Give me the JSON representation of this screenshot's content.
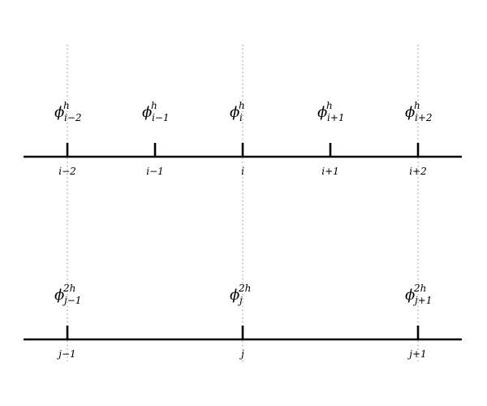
{
  "fine_grid": {
    "symbol": "ϕ",
    "superscript": "h",
    "nodes": [
      {
        "subscript": "i−2",
        "index_label": "i−2",
        "aligned": true
      },
      {
        "subscript": "i−1",
        "index_label": "i−1",
        "aligned": false
      },
      {
        "subscript": "i",
        "index_label": "i",
        "aligned": true
      },
      {
        "subscript": "i+1",
        "index_label": "i+1",
        "aligned": false
      },
      {
        "subscript": "i+2",
        "index_label": "i+2",
        "aligned": true
      }
    ]
  },
  "coarse_grid": {
    "symbol": "ϕ",
    "superscript": "2h",
    "nodes": [
      {
        "subscript": "j−1",
        "index_label": "j−1"
      },
      {
        "subscript": "j",
        "index_label": "j"
      },
      {
        "subscript": "j+1",
        "index_label": "j+1"
      }
    ]
  }
}
